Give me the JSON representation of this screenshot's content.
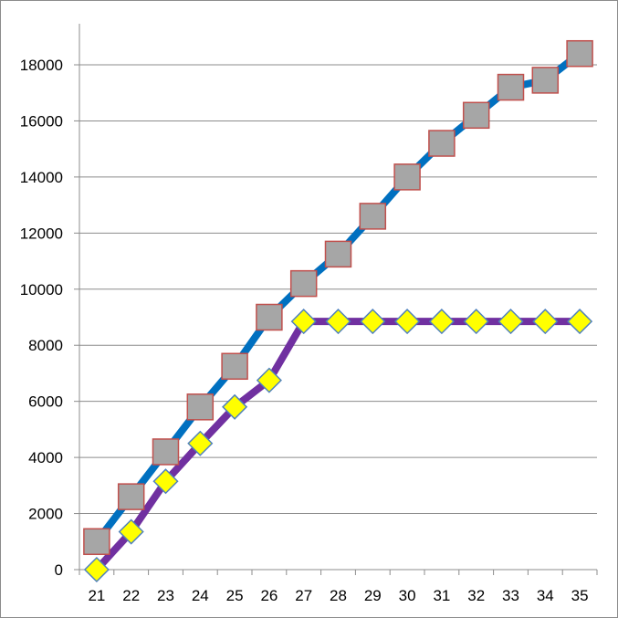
{
  "chart_data": {
    "type": "line",
    "title": "",
    "xlabel": "",
    "ylabel": "",
    "categories": [
      "21",
      "22",
      "23",
      "24",
      "25",
      "26",
      "27",
      "28",
      "29",
      "30",
      "31",
      "32",
      "33",
      "34",
      "35"
    ],
    "ylim": [
      0,
      20000
    ],
    "yticks": [
      0,
      2000,
      4000,
      6000,
      8000,
      10000,
      12000,
      14000,
      16000,
      18000
    ],
    "grid": true,
    "legend": "none",
    "series": [
      {
        "values": [
          1000,
          2600,
          4200,
          5800,
          7250,
          9000,
          10200,
          11250,
          12600,
          14000,
          15200,
          16200,
          17200,
          17450,
          18400
        ],
        "line_color": "#0070c0",
        "marker": "square",
        "marker_fill": "#a6a6a6",
        "marker_stroke": "#c0504d"
      },
      {
        "values": [
          0,
          1350,
          3150,
          4500,
          5800,
          6750,
          8850,
          8850,
          8850,
          8850,
          8850,
          8850,
          8850,
          8850,
          8850
        ],
        "line_color": "#7030a0",
        "marker": "diamond",
        "marker_fill": "#ffff00",
        "marker_stroke": "#4f81bd"
      }
    ]
  }
}
